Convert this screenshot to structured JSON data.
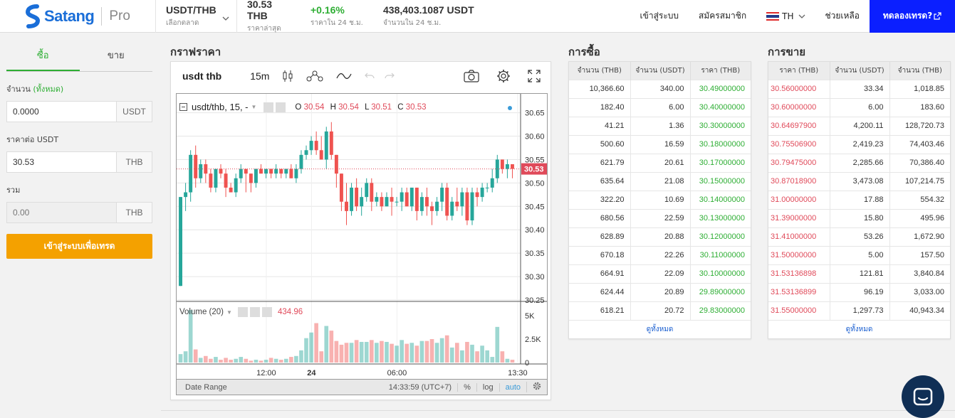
{
  "header": {
    "brand": "Satang",
    "edition": "Pro",
    "market": {
      "value": "USDT/THB",
      "label": "เลือกตลาด"
    },
    "last_price": {
      "value": "30.53 THB",
      "label": "ราคาล่าสุด"
    },
    "change_24h": {
      "value": "+0.16%",
      "label": "ราคาใน 24 ช.ม."
    },
    "volume_24h": {
      "value": "438,403.1087 USDT",
      "label": "จำนวนใน 24 ช.ม."
    },
    "nav": {
      "login": "เข้าสู่ระบบ",
      "register": "สมัครสมาชิก",
      "lang": "TH",
      "help": "ช่วยเหลือ",
      "trial": "ทดลองเทรด?"
    }
  },
  "order_form": {
    "tabs": [
      "ซื้อ",
      "ขาย"
    ],
    "amount_label": "จำนวน",
    "amount_hint": "(ทั้งหมด)",
    "amount_value": "0.0000",
    "amount_unit": "USDT",
    "price_label": "ราคาต่อ USDT",
    "price_value": "30.53",
    "price_unit": "THB",
    "total_label": "รวม",
    "total_value": "0.00",
    "total_unit": "THB",
    "submit": "เข้าสู่ระบบเพื่อเทรด"
  },
  "chart_section": {
    "title": "กราฟราคา",
    "symbol": "usdt thb",
    "interval": "15m",
    "legend_symbol": "usdt/thb, 15, -",
    "ohlc": {
      "O": "30.54",
      "H": "30.54",
      "L": "30.51",
      "C": "30.53"
    },
    "price_ticks": [
      "30.65",
      "30.60",
      "30.55",
      "30.50",
      "30.45",
      "30.40",
      "30.35",
      "30.30",
      "30.25"
    ],
    "last_price_tag": "30.53",
    "volume_label": "Volume (20)",
    "volume_value": "434.96",
    "volume_ticks": [
      "5K",
      "2.5K",
      "0"
    ],
    "time_ticks": [
      "12:00",
      "24",
      "06:00",
      "13:30"
    ],
    "date_range": "Date Range",
    "clock": "14:33:59",
    "tz": "(UTC+7)",
    "pct": "%",
    "log": "log",
    "auto": "auto"
  },
  "chart_data": {
    "type": "candlestick",
    "ylim": [
      30.25,
      30.66
    ],
    "volume_ylim": [
      0,
      5000
    ],
    "candles": [
      [
        30.28,
        30.47,
        30.28,
        30.47,
        900
      ],
      [
        30.47,
        30.5,
        30.44,
        30.48,
        1200
      ],
      [
        30.48,
        30.57,
        30.46,
        30.56,
        5600
      ],
      [
        30.56,
        30.58,
        30.49,
        30.51,
        1400
      ],
      [
        30.51,
        30.55,
        30.5,
        30.54,
        500
      ],
      [
        30.54,
        30.55,
        30.5,
        30.52,
        700
      ],
      [
        30.52,
        30.53,
        30.48,
        30.49,
        400
      ],
      [
        30.49,
        30.53,
        30.48,
        30.53,
        600
      ],
      [
        30.53,
        30.54,
        30.51,
        30.52,
        300
      ],
      [
        30.52,
        30.53,
        30.47,
        30.49,
        500
      ],
      [
        30.49,
        30.5,
        30.48,
        30.48,
        300
      ],
      [
        30.48,
        30.52,
        30.47,
        30.51,
        400
      ],
      [
        30.51,
        30.54,
        30.5,
        30.53,
        600
      ],
      [
        30.53,
        30.53,
        30.48,
        30.52,
        400
      ],
      [
        30.52,
        30.52,
        30.48,
        30.5,
        200
      ],
      [
        30.5,
        30.53,
        30.49,
        30.53,
        300
      ],
      [
        30.53,
        30.54,
        30.52,
        30.52,
        200
      ],
      [
        30.52,
        30.53,
        30.51,
        30.53,
        300
      ],
      [
        30.53,
        30.53,
        30.51,
        30.52,
        500
      ],
      [
        30.52,
        30.54,
        30.51,
        30.53,
        400
      ],
      [
        30.53,
        30.53,
        30.51,
        30.52,
        300
      ],
      [
        30.52,
        30.53,
        30.51,
        30.53,
        400
      ],
      [
        30.53,
        30.54,
        30.51,
        30.51,
        600
      ],
      [
        30.51,
        30.54,
        30.5,
        30.53,
        700
      ],
      [
        30.53,
        30.57,
        30.52,
        30.56,
        1300
      ],
      [
        30.56,
        30.58,
        30.55,
        30.57,
        2600
      ],
      [
        30.57,
        30.6,
        30.56,
        30.59,
        3200
      ],
      [
        30.59,
        30.61,
        30.56,
        30.57,
        4200
      ],
      [
        30.57,
        30.6,
        30.55,
        30.55,
        1200
      ],
      [
        30.55,
        30.62,
        30.53,
        30.61,
        3900
      ],
      [
        30.61,
        30.63,
        30.55,
        30.56,
        3400
      ],
      [
        30.56,
        30.56,
        30.49,
        30.52,
        2300
      ],
      [
        30.52,
        30.52,
        30.44,
        30.46,
        1900
      ],
      [
        30.46,
        30.5,
        30.41,
        30.44,
        2100
      ],
      [
        30.44,
        30.5,
        30.43,
        30.49,
        2100
      ],
      [
        30.49,
        30.51,
        30.44,
        30.45,
        2400
      ],
      [
        30.45,
        30.49,
        30.43,
        30.47,
        2200
      ],
      [
        30.47,
        30.51,
        30.46,
        30.5,
        2200
      ],
      [
        30.5,
        30.51,
        30.44,
        30.46,
        2400
      ],
      [
        30.46,
        30.48,
        30.45,
        30.47,
        2100
      ],
      [
        30.47,
        30.48,
        30.44,
        30.45,
        2300
      ],
      [
        30.45,
        30.48,
        30.45,
        30.47,
        2200
      ],
      [
        30.47,
        30.49,
        30.43,
        30.46,
        2000
      ],
      [
        30.46,
        30.47,
        30.45,
        30.46,
        1800
      ],
      [
        30.46,
        30.49,
        30.44,
        30.48,
        2400
      ],
      [
        30.48,
        30.49,
        30.45,
        30.45,
        2000
      ],
      [
        30.45,
        30.49,
        30.44,
        30.49,
        2100
      ],
      [
        30.49,
        30.49,
        30.42,
        30.44,
        1800
      ],
      [
        30.44,
        30.48,
        30.43,
        30.47,
        2300
      ],
      [
        30.47,
        30.49,
        30.43,
        30.45,
        2300
      ],
      [
        30.45,
        30.46,
        30.41,
        30.44,
        2500
      ],
      [
        30.44,
        30.47,
        30.43,
        30.46,
        2100
      ],
      [
        30.46,
        30.5,
        30.44,
        30.49,
        2600
      ],
      [
        30.49,
        30.5,
        30.42,
        30.43,
        2900
      ],
      [
        30.43,
        30.47,
        30.42,
        30.46,
        1600
      ],
      [
        30.46,
        30.49,
        30.44,
        30.45,
        2100
      ],
      [
        30.45,
        30.49,
        30.43,
        30.48,
        1300
      ],
      [
        30.48,
        30.49,
        30.41,
        30.42,
        2200
      ],
      [
        30.42,
        30.49,
        30.41,
        30.48,
        1900
      ],
      [
        30.48,
        30.49,
        30.45,
        30.47,
        1200
      ],
      [
        30.47,
        30.5,
        30.46,
        30.49,
        1800
      ],
      [
        30.49,
        30.5,
        30.48,
        30.49,
        1300
      ],
      [
        30.49,
        30.53,
        30.48,
        30.51,
        600
      ],
      [
        30.51,
        30.56,
        30.5,
        30.55,
        3800
      ],
      [
        30.55,
        30.55,
        30.52,
        30.53,
        1200
      ],
      [
        30.53,
        30.55,
        30.51,
        30.54,
        400
      ],
      [
        30.54,
        30.54,
        30.51,
        30.53,
        300
      ]
    ]
  },
  "buy_book": {
    "title": "การซื้อ",
    "headers": [
      "จำนวน (THB)",
      "จำนวน (USDT)",
      "ราคา (THB)"
    ],
    "rows": [
      [
        "10,366.60",
        "340.00",
        "30.49000000"
      ],
      [
        "182.40",
        "6.00",
        "30.40000000"
      ],
      [
        "41.21",
        "1.36",
        "30.30000000"
      ],
      [
        "500.60",
        "16.59",
        "30.18000000"
      ],
      [
        "621.79",
        "20.61",
        "30.17000000"
      ],
      [
        "635.64",
        "21.08",
        "30.15000000"
      ],
      [
        "322.20",
        "10.69",
        "30.14000000"
      ],
      [
        "680.56",
        "22.59",
        "30.13000000"
      ],
      [
        "628.89",
        "20.88",
        "30.12000000"
      ],
      [
        "670.18",
        "22.26",
        "30.11000000"
      ],
      [
        "664.91",
        "22.09",
        "30.10000000"
      ],
      [
        "624.44",
        "20.89",
        "29.89000000"
      ],
      [
        "618.21",
        "20.72",
        "29.83000000"
      ]
    ],
    "more": "ดูทั้งหมด"
  },
  "sell_book": {
    "title": "การขาย",
    "headers": [
      "ราคา (THB)",
      "จำนวน (USDT)",
      "จำนวน (THB)"
    ],
    "rows": [
      [
        "30.56000000",
        "33.34",
        "1,018.85"
      ],
      [
        "30.60000000",
        "6.00",
        "183.60"
      ],
      [
        "30.64697900",
        "4,200.11",
        "128,720.73"
      ],
      [
        "30.75506900",
        "2,419.23",
        "74,403.46"
      ],
      [
        "30.79475000",
        "2,285.66",
        "70,386.40"
      ],
      [
        "30.87018900",
        "3,473.08",
        "107,214.75"
      ],
      [
        "31.00000000",
        "17.88",
        "554.32"
      ],
      [
        "31.39000000",
        "15.80",
        "495.96"
      ],
      [
        "31.41000000",
        "53.26",
        "1,672.90"
      ],
      [
        "31.50000000",
        "5.00",
        "157.50"
      ],
      [
        "31.53136898",
        "121.81",
        "3,840.84"
      ],
      [
        "31.53136899",
        "96.19",
        "3,033.00"
      ],
      [
        "31.55000000",
        "1,297.73",
        "40,943.34"
      ]
    ],
    "more": "ดูทั้งหมด"
  },
  "colors": {
    "brand": "#1a6ed8",
    "up": "#2eae34",
    "down": "#e04a5a",
    "cta": "#f4a100",
    "trial": "#0b1fff"
  }
}
